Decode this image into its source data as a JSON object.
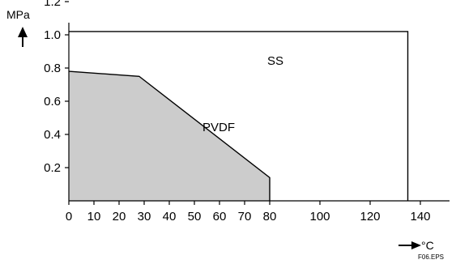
{
  "figure": {
    "file_tag": "F06.EPS"
  },
  "chart_data": {
    "type": "area",
    "xlabel": "°C",
    "ylabel": "MPa",
    "xlim": [
      0,
      150
    ],
    "ylim": [
      0,
      1.4
    ],
    "x_ticks": [
      0,
      10,
      20,
      30,
      40,
      50,
      60,
      70,
      80,
      100,
      120,
      140
    ],
    "x_tick_labels": [
      "0",
      "10",
      "20",
      "30",
      "40",
      "50",
      "60",
      "70",
      "80",
      "100",
      "120",
      "140"
    ],
    "y_ticks": [
      0.2,
      0.4,
      0.6,
      0.8,
      1.0,
      1.2
    ],
    "y_tick_labels": [
      "0.2",
      "0.4",
      "0.6",
      "0.8",
      "1.0",
      "1.2"
    ],
    "grid": false,
    "series": [
      {
        "name": "SS",
        "style": "line",
        "color": "#000000",
        "points": [
          [
            0,
            1.02
          ],
          [
            135,
            1.02
          ],
          [
            135,
            0
          ]
        ]
      },
      {
        "name": "PVDF",
        "style": "filled-area",
        "color": "#000000",
        "fill": "#cccccc",
        "points": [
          [
            0,
            0.78
          ],
          [
            28,
            0.75
          ],
          [
            80,
            0.14
          ],
          [
            80,
            0
          ]
        ]
      }
    ]
  }
}
